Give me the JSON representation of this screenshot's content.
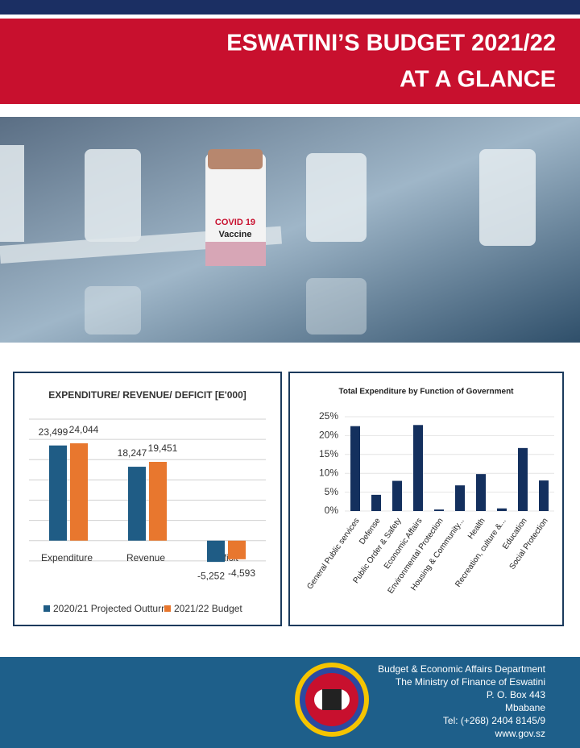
{
  "header": {
    "title_line1": "ESWATINI’S BUDGET 2021/22",
    "title_line2": "AT A GLANCE"
  },
  "photo": {
    "vial_label_line1": "COVID 19",
    "vial_label_line2": "Vaccine"
  },
  "chart_data": [
    {
      "type": "grouped-bar",
      "title": "EXPENDITURE/ REVENUE/ DEFICIT [E'000]",
      "categories": [
        "Expenditure",
        "Revenue",
        "Deficit"
      ],
      "series": [
        {
          "name": "2020/21 Projected Outturn",
          "color": "#1f5c85",
          "values": [
            23499,
            18247,
            -5252
          ],
          "value_labels": [
            "23,499",
            "18,247",
            "-5,252"
          ]
        },
        {
          "name": "2021/22 Budget",
          "color": "#e8772e",
          "values": [
            24044,
            19451,
            -4593
          ],
          "value_labels": [
            "24,044",
            "19,451",
            "-4,593"
          ]
        }
      ],
      "ylim": [
        -10000,
        30000
      ],
      "yticks": [
        -5000,
        0,
        5000,
        10000,
        15000,
        20000,
        25000,
        30000
      ],
      "grid": true,
      "legend": "bottom"
    },
    {
      "type": "bar",
      "title": "Total Expenditure by Function of Government",
      "categories": [
        "General Public services",
        "Defense",
        "Public Order & Safety",
        "Economic Affairs",
        "Environmental Protection",
        "Housing & Community...",
        "Health",
        "Recreation, culture &...",
        "Education",
        "Social Protection"
      ],
      "values": [
        22.5,
        4.3,
        8.0,
        22.8,
        0.4,
        6.8,
        9.8,
        0.7,
        16.7,
        8.1
      ],
      "color": "#14305e",
      "ylim": [
        0,
        25
      ],
      "yticks": [
        {
          "value": 0,
          "label": "0%"
        },
        {
          "value": 5,
          "label": "5%"
        },
        {
          "value": 10,
          "label": "10%"
        },
        {
          "value": 15,
          "label": "15%"
        },
        {
          "value": 20,
          "label": "20%"
        },
        {
          "value": 25,
          "label": "25%"
        }
      ],
      "grid": true
    }
  ],
  "footer": {
    "lines": [
      "Budget & Economic Affairs Department",
      "The Ministry of Finance of Eswatini",
      "P. O. Box 443",
      "Mbabane",
      "Tel: (+268) 2404 8145/9",
      "www.gov.sz"
    ]
  }
}
